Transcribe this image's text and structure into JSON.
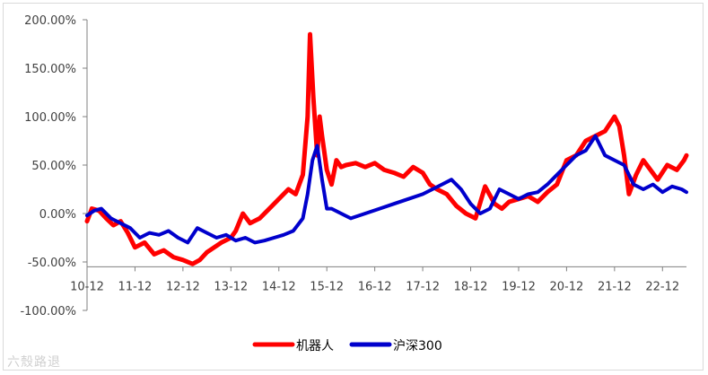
{
  "watermark": "六殼路退",
  "chart_data": {
    "type": "line",
    "title": "",
    "xlabel": "",
    "ylabel": "",
    "ylim": [
      -100,
      200
    ],
    "yticks": [
      200,
      150,
      100,
      50,
      0,
      -50,
      -100
    ],
    "ytick_labels": [
      "200.00%",
      "150.00%",
      "100.00%",
      "50.00%",
      "0.00%",
      "-50.00%",
      "-100.00%"
    ],
    "xlim": [
      0,
      12.5
    ],
    "x_axis_crossing": -55,
    "xticks": [
      0,
      1,
      2,
      3,
      4,
      5,
      6,
      7,
      8,
      9,
      10,
      11,
      12
    ],
    "xtick_labels": [
      "10-12",
      "11-12",
      "12-12",
      "13-12",
      "14-12",
      "15-12",
      "16-12",
      "17-12",
      "18-12",
      "19-12",
      "20-12",
      "21-12",
      "22-12"
    ],
    "legend_position": "bottom",
    "series": [
      {
        "name": "机器人",
        "color": "#ff0000",
        "x": [
          0,
          0.1,
          0.25,
          0.4,
          0.55,
          0.7,
          0.85,
          1.0,
          1.2,
          1.4,
          1.6,
          1.8,
          2.0,
          2.2,
          2.35,
          2.5,
          2.65,
          2.8,
          3.0,
          3.1,
          3.25,
          3.4,
          3.6,
          3.8,
          4.0,
          4.2,
          4.35,
          4.5,
          4.6,
          4.65,
          4.72,
          4.8,
          4.85,
          4.9,
          5.0,
          5.1,
          5.2,
          5.3,
          5.4,
          5.6,
          5.8,
          6.0,
          6.2,
          6.4,
          6.6,
          6.8,
          7.0,
          7.15,
          7.3,
          7.5,
          7.7,
          7.9,
          8.1,
          8.3,
          8.5,
          8.65,
          8.8,
          9.0,
          9.2,
          9.4,
          9.6,
          9.8,
          10.0,
          10.2,
          10.4,
          10.6,
          10.8,
          11.0,
          11.1,
          11.2,
          11.3,
          11.45,
          11.6,
          11.75,
          11.9,
          12.1,
          12.3,
          12.45,
          12.5
        ],
        "values": [
          -8,
          5,
          3,
          -5,
          -12,
          -8,
          -20,
          -35,
          -30,
          -42,
          -38,
          -45,
          -48,
          -52,
          -48,
          -40,
          -35,
          -30,
          -25,
          -18,
          0,
          -10,
          -5,
          5,
          15,
          25,
          20,
          40,
          100,
          185,
          120,
          60,
          100,
          80,
          45,
          30,
          55,
          48,
          50,
          52,
          48,
          52,
          45,
          42,
          38,
          48,
          42,
          30,
          25,
          20,
          8,
          0,
          -5,
          28,
          10,
          5,
          12,
          15,
          18,
          12,
          22,
          30,
          55,
          60,
          75,
          80,
          85,
          100,
          90,
          60,
          20,
          40,
          55,
          45,
          35,
          50,
          45,
          55,
          60
        ]
      },
      {
        "name": "沪深300",
        "color": "#0000cc",
        "x": [
          0,
          0.15,
          0.3,
          0.5,
          0.7,
          0.9,
          1.1,
          1.3,
          1.5,
          1.7,
          1.9,
          2.1,
          2.3,
          2.5,
          2.7,
          2.9,
          3.1,
          3.3,
          3.5,
          3.7,
          3.9,
          4.1,
          4.3,
          4.5,
          4.6,
          4.7,
          4.8,
          4.9,
          5.0,
          5.1,
          5.3,
          5.5,
          5.8,
          6.1,
          6.4,
          6.7,
          7.0,
          7.2,
          7.4,
          7.6,
          7.8,
          8.0,
          8.2,
          8.4,
          8.6,
          8.8,
          9.0,
          9.2,
          9.4,
          9.6,
          9.8,
          10.0,
          10.2,
          10.4,
          10.6,
          10.8,
          11.0,
          11.2,
          11.4,
          11.6,
          11.8,
          12.0,
          12.2,
          12.4,
          12.5
        ],
        "values": [
          -2,
          3,
          5,
          -5,
          -10,
          -15,
          -25,
          -20,
          -22,
          -18,
          -25,
          -30,
          -15,
          -20,
          -25,
          -22,
          -28,
          -25,
          -30,
          -28,
          -25,
          -22,
          -18,
          -5,
          20,
          55,
          70,
          35,
          5,
          5,
          0,
          -5,
          0,
          5,
          10,
          15,
          20,
          25,
          30,
          35,
          25,
          10,
          0,
          5,
          25,
          20,
          15,
          20,
          22,
          30,
          40,
          50,
          60,
          65,
          80,
          60,
          55,
          50,
          30,
          25,
          30,
          22,
          28,
          25,
          22
        ]
      }
    ]
  }
}
